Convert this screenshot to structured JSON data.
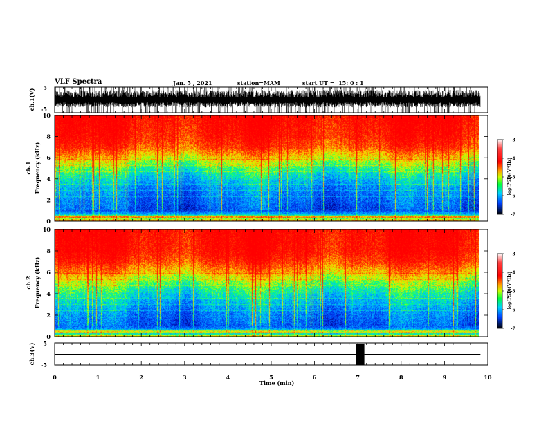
{
  "header": {
    "title": "VLF Spectra",
    "date": "Jan. 5 , 2021",
    "station": "station=MAM",
    "start": "start UT =  15: 0 : 1"
  },
  "colors": {
    "spectrogram_scale": [
      "#0000b0",
      "#0050ff",
      "#00c8ff",
      "#00ff60",
      "#c8ff00",
      "#ffd000",
      "#ff3000",
      "#ff0000"
    ],
    "trace": "#000000",
    "frame": "#000000"
  },
  "chart_data": [
    {
      "type": "line",
      "name": "ch1-waveform",
      "ylabel": "ch.1(V)",
      "yticks": [
        "5",
        "-5"
      ],
      "ylim": [
        -5,
        5
      ],
      "x": [
        0,
        9.83
      ],
      "description_values": "dense impulsive waveform, mostly within -2..+5 V with spikes to the limits"
    },
    {
      "type": "heatmap",
      "name": "ch1-spectrogram",
      "ylabel": [
        "ch.1",
        "Frequency (kHz)"
      ],
      "yticks": [
        "10",
        "8",
        "6",
        "4",
        "2",
        "0"
      ],
      "ylim": [
        0,
        10
      ],
      "xlim": [
        0,
        10
      ],
      "data_end_min": 9.83,
      "z_range": [
        -7,
        -3
      ],
      "colorbar": {
        "label": "log(PSD)(V²/Hz)",
        "ticks": [
          "-3",
          "-4",
          "-5",
          "-6",
          "-7"
        ]
      },
      "level_profile_by_freq_khz": [
        {
          "f": 0.0,
          "z": -4.0
        },
        {
          "f": 0.3,
          "z": -5.0
        },
        {
          "f": 1.0,
          "z": -6.3
        },
        {
          "f": 2.0,
          "z": -6.1
        },
        {
          "f": 3.0,
          "z": -5.9
        },
        {
          "f": 4.0,
          "z": -5.5
        },
        {
          "f": 5.0,
          "z": -5.0
        },
        {
          "f": 6.0,
          "z": -4.3
        },
        {
          "f": 7.0,
          "z": -3.6
        },
        {
          "f": 8.0,
          "z": -3.3
        },
        {
          "f": 10.0,
          "z": -3.1
        }
      ]
    },
    {
      "type": "heatmap",
      "name": "ch2-spectrogram",
      "ylabel": [
        "ch.2",
        "Frequency (kHz)"
      ],
      "yticks": [
        "10",
        "8",
        "6",
        "4",
        "2",
        "0"
      ],
      "ylim": [
        0,
        10
      ],
      "xlim": [
        0,
        10
      ],
      "data_end_min": 9.83,
      "z_range": [
        -7,
        -3
      ],
      "colorbar": {
        "label": "log(PSD)(V²/Hz)",
        "ticks": [
          "-3",
          "-4",
          "-5",
          "-6",
          "-7"
        ]
      },
      "level_profile_by_freq_khz": [
        {
          "f": 0.0,
          "z": -4.5
        },
        {
          "f": 0.3,
          "z": -5.5
        },
        {
          "f": 1.0,
          "z": -6.2
        },
        {
          "f": 2.0,
          "z": -6.0
        },
        {
          "f": 3.0,
          "z": -5.7
        },
        {
          "f": 4.0,
          "z": -5.3
        },
        {
          "f": 5.0,
          "z": -4.8
        },
        {
          "f": 6.0,
          "z": -4.1
        },
        {
          "f": 7.0,
          "z": -3.5
        },
        {
          "f": 8.0,
          "z": -3.2
        },
        {
          "f": 10.0,
          "z": -3.1
        }
      ]
    },
    {
      "type": "line",
      "name": "ch3-waveform",
      "ylabel": "ch.3(V)",
      "yticks": [
        "5",
        "-5"
      ],
      "ylim": [
        -5,
        5
      ],
      "segments": [
        {
          "x0": 0,
          "x1": 6.95,
          "y": 0
        },
        {
          "x0": 7.15,
          "x1": 9.83,
          "y": 0
        }
      ],
      "pulse": {
        "x0": 6.95,
        "x1": 7.15,
        "ymin": -5,
        "ymax": 5
      }
    }
  ],
  "xaxis": {
    "label": "Time (min)",
    "ticks": [
      "0",
      "1",
      "2",
      "3",
      "4",
      "5",
      "6",
      "7",
      "8",
      "9",
      "10"
    ],
    "xlim": [
      0,
      10
    ]
  }
}
